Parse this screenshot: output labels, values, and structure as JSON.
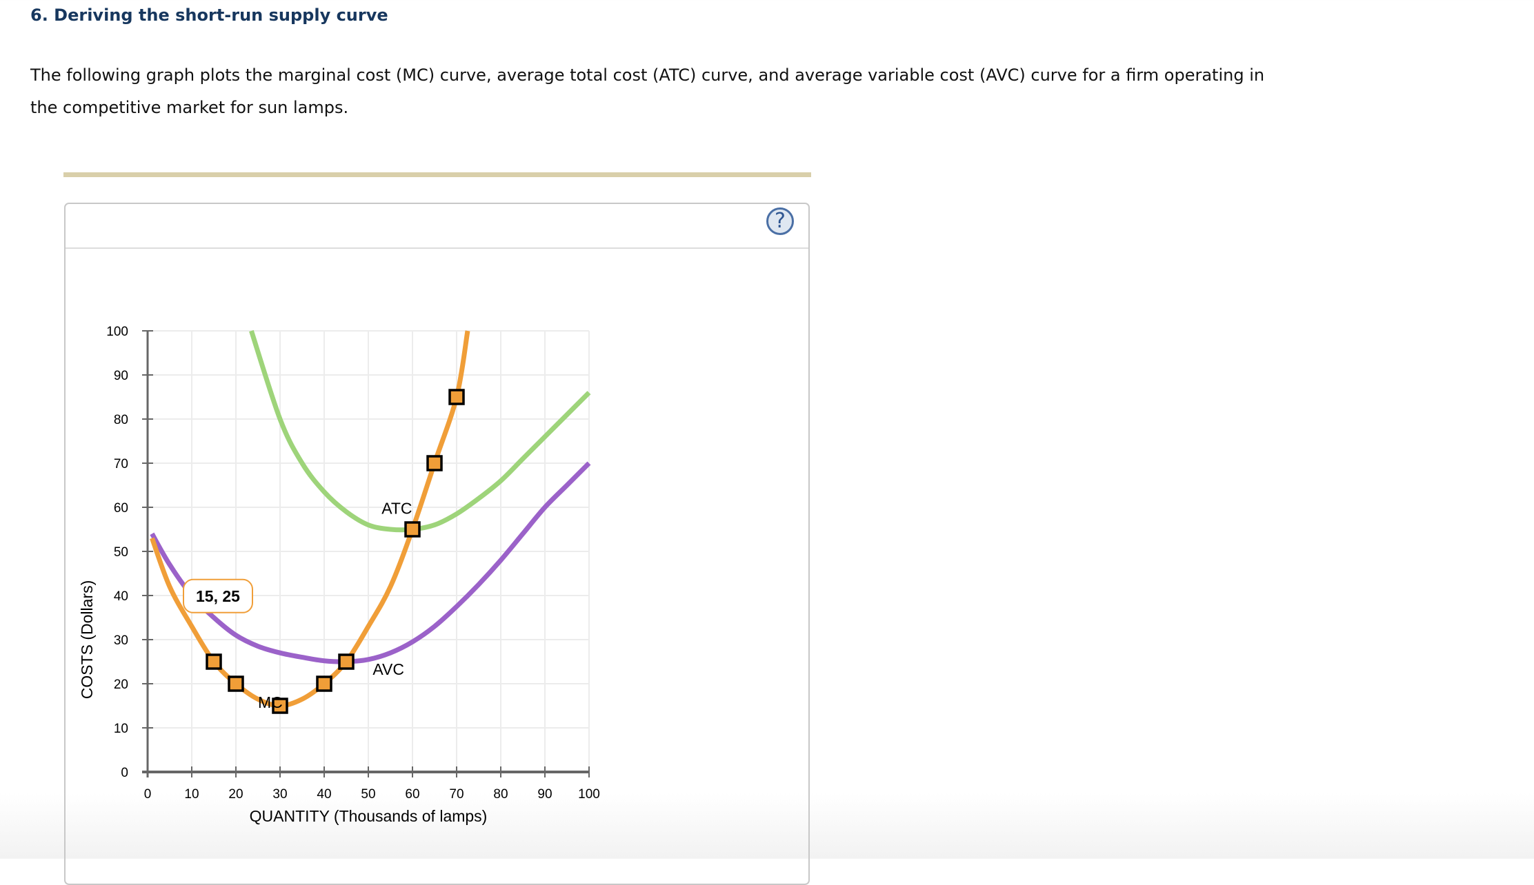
{
  "heading": "6. Deriving the short-run supply curve",
  "intro": "The following graph plots the marginal cost (MC) curve, average total cost (ATC) curve, and average variable cost (AVC) curve for a firm operating in the competitive market for sun lamps.",
  "panel": {
    "help_icon": "question-circle-icon",
    "help_glyph": "?"
  },
  "colors": {
    "heading": "#17375e",
    "mc": "#f09e38",
    "atc": "#9ed47a",
    "avc": "#9b62c9",
    "tanbar": "#d9cfaa",
    "help": "#4a6fa5"
  },
  "chart_data": {
    "type": "line",
    "title": "",
    "xlabel": "QUANTITY (Thousands of lamps)",
    "ylabel": "COSTS (Dollars)",
    "xlim": [
      0,
      100
    ],
    "ylim": [
      0,
      100
    ],
    "x_ticks": [
      "0",
      "10",
      "20",
      "30",
      "40",
      "50",
      "60",
      "70",
      "80",
      "90",
      "100"
    ],
    "y_ticks": [
      "0",
      "10",
      "20",
      "30",
      "40",
      "50",
      "60",
      "70",
      "80",
      "90",
      "100"
    ],
    "grid": true,
    "series": [
      {
        "name": "MC",
        "color": "#f09e38",
        "points": [
          [
            1,
            53
          ],
          [
            5,
            42
          ],
          [
            10,
            33
          ],
          [
            15,
            25
          ],
          [
            20,
            20
          ],
          [
            25,
            16.5
          ],
          [
            30,
            15
          ],
          [
            35,
            16.5
          ],
          [
            40,
            20
          ],
          [
            45,
            25
          ],
          [
            50,
            33
          ],
          [
            55,
            42
          ],
          [
            60,
            55
          ],
          [
            65,
            70
          ],
          [
            70,
            85
          ],
          [
            72.5,
            100
          ]
        ],
        "markers": [
          [
            15,
            25
          ],
          [
            20,
            20
          ],
          [
            30,
            15
          ],
          [
            40,
            20
          ],
          [
            45,
            25
          ],
          [
            60,
            55
          ],
          [
            65,
            70
          ],
          [
            70,
            85
          ]
        ]
      },
      {
        "name": "ATC",
        "color": "#9ed47a",
        "points": [
          [
            23.5,
            100
          ],
          [
            30,
            80
          ],
          [
            35,
            70
          ],
          [
            40,
            63.5
          ],
          [
            45,
            59
          ],
          [
            50,
            56
          ],
          [
            55,
            55
          ],
          [
            60,
            55
          ],
          [
            65,
            56
          ],
          [
            70,
            58.5
          ],
          [
            75,
            62
          ],
          [
            80,
            66
          ],
          [
            85,
            71
          ],
          [
            90,
            76
          ],
          [
            95,
            81
          ],
          [
            100,
            86
          ]
        ]
      },
      {
        "name": "AVC",
        "color": "#9b62c9",
        "points": [
          [
            1,
            54
          ],
          [
            5,
            47
          ],
          [
            10,
            40
          ],
          [
            15,
            35
          ],
          [
            20,
            31
          ],
          [
            25,
            28.5
          ],
          [
            30,
            27
          ],
          [
            35,
            26
          ],
          [
            40,
            25.2
          ],
          [
            45,
            25
          ],
          [
            50,
            25.5
          ],
          [
            55,
            27
          ],
          [
            60,
            29.5
          ],
          [
            65,
            33
          ],
          [
            70,
            37.5
          ],
          [
            75,
            42.5
          ],
          [
            80,
            48
          ],
          [
            85,
            54
          ],
          [
            90,
            60
          ],
          [
            95,
            65
          ],
          [
            100,
            70
          ]
        ]
      }
    ],
    "annotations": [
      {
        "text": "MC",
        "x": 25,
        "y": 14.5
      },
      {
        "text": "ATC",
        "x": 53,
        "y": 58.5
      },
      {
        "text": "AVC",
        "x": 51,
        "y": 22
      },
      {
        "text": "15, 25",
        "x": 15,
        "y": 38,
        "type": "tooltip"
      }
    ]
  }
}
